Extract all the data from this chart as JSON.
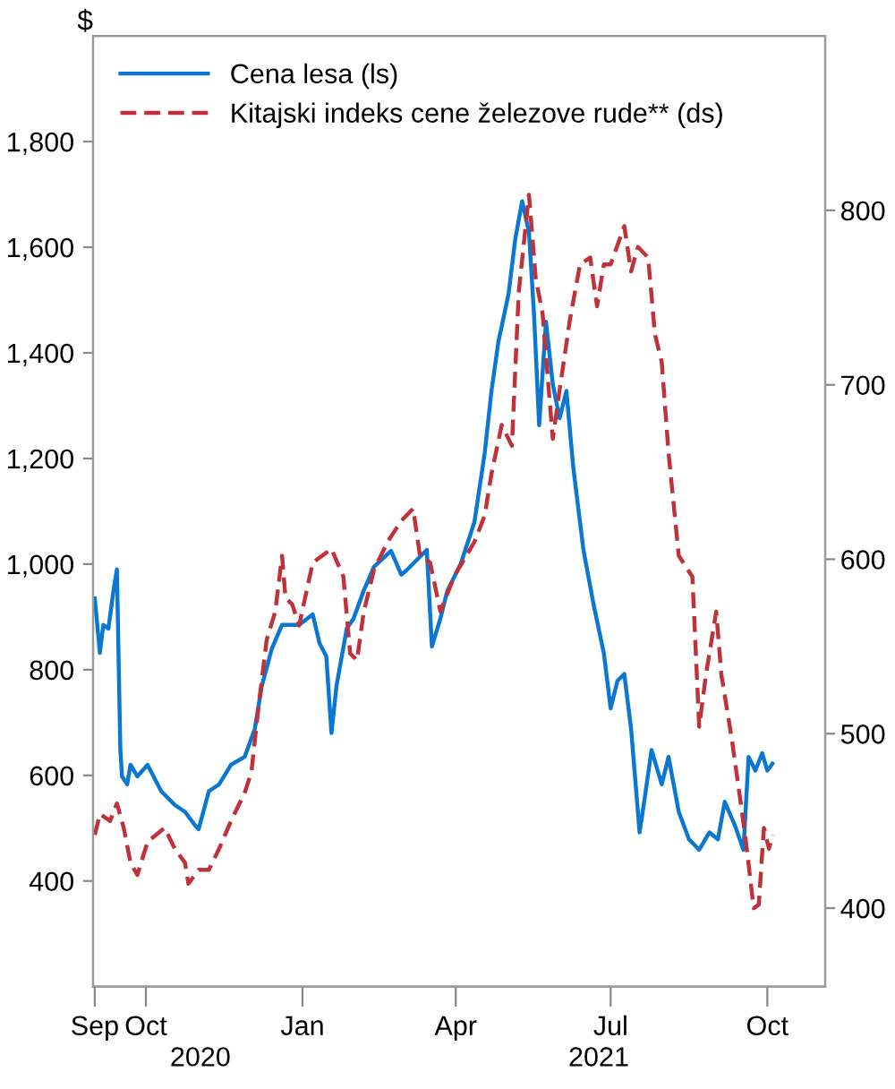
{
  "chart_data": {
    "type": "line",
    "ylabel": "$",
    "legend": "top left",
    "grid": false,
    "xlim": [
      "2020-08-31",
      "2021-11-04"
    ],
    "xticks": [
      {
        "value": "2020-09-01",
        "label": "Sep"
      },
      {
        "value": "2020-10-01",
        "label": "Oct"
      },
      {
        "value": "2021-01-01",
        "label": "Jan"
      },
      {
        "value": "2021-04-01",
        "label": "Apr"
      },
      {
        "value": "2021-07-01",
        "label": "Jul"
      },
      {
        "value": "2021-10-01",
        "label": "Oct"
      }
    ],
    "x2lim": [
      "2020-08-31",
      "2021-11-04"
    ],
    "x2ticks": [
      {
        "value": "2020-11-02",
        "label": "2020"
      },
      {
        "value": "2021-06-24",
        "label": "2021"
      }
    ],
    "ylim": [
      200,
      2000
    ],
    "yticks": [
      {
        "value": 400,
        "label": "400"
      },
      {
        "value": 600,
        "label": "600"
      },
      {
        "value": 800,
        "label": "800"
      },
      {
        "value": 1000,
        "label": "1,000"
      },
      {
        "value": 1200,
        "label": "1,200"
      },
      {
        "value": 1400,
        "label": "1,400"
      },
      {
        "value": 1600,
        "label": "1,600"
      },
      {
        "value": 1800,
        "label": "1,800"
      }
    ],
    "y2lim": [
      355,
      900
    ],
    "y2ticks": [
      {
        "value": 400,
        "label": "400"
      },
      {
        "value": 500,
        "label": "500"
      },
      {
        "value": 600,
        "label": "600"
      },
      {
        "value": 700,
        "label": "700"
      },
      {
        "value": 800,
        "label": "800"
      }
    ],
    "series": [
      {
        "name": "Cena lesa (ls)",
        "color": "#0a78d2",
        "line_style": "solid",
        "x": [
          "2020-09-01",
          "2020-09-04",
          "2020-09-06",
          "2020-09-09",
          "2020-09-12",
          "2020-09-14",
          "2020-09-16",
          "2020-09-17",
          "2020-09-20",
          "2020-09-22",
          "2020-09-26",
          "2020-10-02",
          "2020-10-10",
          "2020-10-18",
          "2020-10-24",
          "2020-10-30",
          "2020-11-01",
          "2020-11-07",
          "2020-11-13",
          "2020-11-20",
          "2020-11-28",
          "2020-12-04",
          "2020-12-08",
          "2020-12-14",
          "2020-12-20",
          "2020-12-30",
          "2021-01-07",
          "2021-01-11",
          "2021-01-15",
          "2021-01-18",
          "2021-01-21",
          "2021-01-27",
          "2021-01-31",
          "2021-02-06",
          "2021-02-12",
          "2021-02-22",
          "2021-02-28",
          "2021-03-03",
          "2021-03-15",
          "2021-03-18",
          "2021-03-23",
          "2021-03-27",
          "2021-04-04",
          "2021-04-12",
          "2021-04-18",
          "2021-04-22",
          "2021-04-26",
          "2021-05-02",
          "2021-05-06",
          "2021-05-10",
          "2021-05-14",
          "2021-05-17",
          "2021-05-20",
          "2021-05-24",
          "2021-05-28",
          "2021-06-01",
          "2021-06-05",
          "2021-06-09",
          "2021-06-15",
          "2021-06-21",
          "2021-06-27",
          "2021-07-01",
          "2021-07-05",
          "2021-07-09",
          "2021-07-13",
          "2021-07-18",
          "2021-07-21",
          "2021-07-25",
          "2021-07-31",
          "2021-08-04",
          "2021-08-10",
          "2021-08-16",
          "2021-08-22",
          "2021-08-28",
          "2021-09-02",
          "2021-09-06",
          "2021-09-12",
          "2021-09-17",
          "2021-09-20",
          "2021-09-24",
          "2021-09-28",
          "2021-10-01",
          "2021-10-04"
        ],
        "values": [
          935,
          832,
          885,
          878,
          950,
          990,
          650,
          598,
          583,
          620,
          598,
          620,
          570,
          544,
          531,
          505,
          498,
          570,
          583,
          620,
          635,
          688,
          768,
          840,
          885,
          885,
          905,
          850,
          825,
          680,
          770,
          878,
          897,
          950,
          995,
          1025,
          980,
          988,
          1027,
          844,
          897,
          949,
          1001,
          1080,
          1210,
          1328,
          1420,
          1511,
          1616,
          1687,
          1629,
          1472,
          1263,
          1459,
          1341,
          1276,
          1328,
          1184,
          1027,
          923,
          831,
          727,
          779,
          792,
          688,
          492,
          557,
          648,
          583,
          635,
          531,
          479,
          459,
          492,
          479,
          550,
          505,
          459,
          635,
          609,
          642,
          609,
          622
        ]
      },
      {
        "name": "Kitajski indeks cene železove rude** (ds)",
        "color": "#c0313a",
        "line_style": "dashed",
        "axis": "y2",
        "x": [
          "2020-09-01",
          "2020-09-04",
          "2020-09-10",
          "2020-09-14",
          "2020-09-18",
          "2020-09-22",
          "2020-09-26",
          "2020-10-02",
          "2020-10-12",
          "2020-10-18",
          "2020-10-24",
          "2020-10-26",
          "2020-11-01",
          "2020-11-07",
          "2020-11-13",
          "2020-11-20",
          "2020-11-28",
          "2020-12-02",
          "2020-12-06",
          "2020-12-11",
          "2020-12-16",
          "2020-12-20",
          "2020-12-22",
          "2020-12-26",
          "2020-12-30",
          "2021-01-07",
          "2021-01-18",
          "2021-01-25",
          "2021-01-29",
          "2021-02-02",
          "2021-02-06",
          "2021-02-12",
          "2021-02-20",
          "2021-02-28",
          "2021-03-07",
          "2021-03-11",
          "2021-03-17",
          "2021-03-23",
          "2021-03-31",
          "2021-04-12",
          "2021-04-18",
          "2021-04-22",
          "2021-04-28",
          "2021-05-04",
          "2021-05-08",
          "2021-05-14",
          "2021-05-18",
          "2021-05-22",
          "2021-05-28",
          "2021-06-01",
          "2021-06-07",
          "2021-06-13",
          "2021-06-19",
          "2021-06-23",
          "2021-06-27",
          "2021-07-01",
          "2021-07-09",
          "2021-07-13",
          "2021-07-17",
          "2021-07-23",
          "2021-07-27",
          "2021-07-31",
          "2021-08-04",
          "2021-08-10",
          "2021-08-18",
          "2021-08-22",
          "2021-08-26",
          "2021-09-01",
          "2021-09-04",
          "2021-09-10",
          "2021-09-18",
          "2021-09-23",
          "2021-09-26",
          "2021-09-29",
          "2021-10-02",
          "2021-10-04"
        ],
        "values": [
          442,
          454,
          450,
          460,
          446,
          426,
          419,
          438,
          446,
          434,
          426,
          414,
          422,
          422,
          434,
          450,
          466,
          478,
          514,
          554,
          570,
          602,
          578,
          574,
          562,
          598,
          606,
          590,
          546,
          542,
          570,
          594,
          610,
          622,
          629,
          602,
          598,
          570,
          590,
          610,
          625,
          649,
          677,
          665,
          753,
          809,
          761,
          741,
          669,
          697,
          737,
          769,
          773,
          745,
          769,
          769,
          791,
          765,
          779,
          773,
          729,
          713,
          661,
          602,
          590,
          504,
          534,
          570,
          534,
          498,
          442,
          400,
          402,
          446,
          434,
          442
        ]
      }
    ]
  }
}
